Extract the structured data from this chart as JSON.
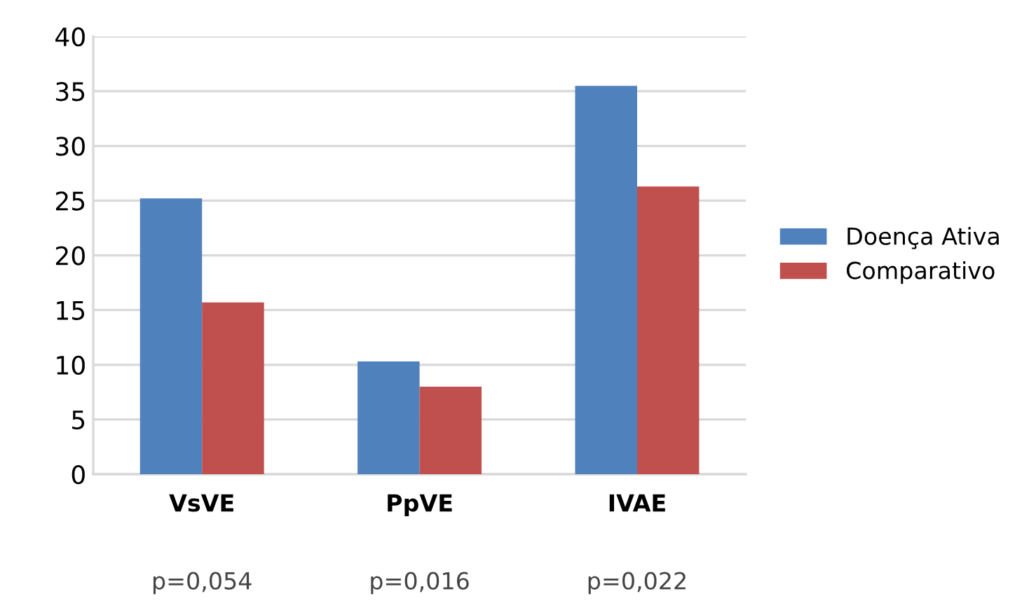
{
  "chart_data": {
    "type": "bar",
    "categories": [
      "VsVE",
      "PpVE",
      "IVAE"
    ],
    "series": [
      {
        "name": "Doença Ativa",
        "color": "#4f81bd",
        "values": [
          25.2,
          10.3,
          35.5
        ]
      },
      {
        "name": "Comparativo",
        "color": "#c0504d",
        "values": [
          15.7,
          8.0,
          26.3
        ]
      }
    ],
    "ylim": [
      0,
      40
    ],
    "yticks": [
      0,
      5,
      10,
      15,
      20,
      25,
      30,
      35,
      40
    ],
    "grid": "y",
    "legend": "right",
    "annotations": [
      "p=0,054",
      "p=0,016",
      "p=0,022"
    ]
  }
}
